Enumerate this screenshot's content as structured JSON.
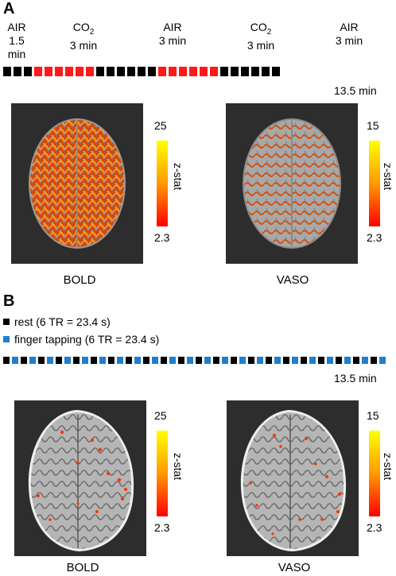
{
  "panel_a": {
    "letter": "A",
    "periods": [
      {
        "line1": "AIR",
        "line2": "1.5 min"
      },
      {
        "line1": "CO",
        "sub": "2",
        "line2": "3 min"
      },
      {
        "line1": "AIR",
        "line2": "3 min"
      },
      {
        "line1": "CO",
        "sub": "2",
        "line2": "3 min"
      },
      {
        "line1": "AIR",
        "line2": "3 min"
      }
    ],
    "block_colors": [
      "#000000",
      "#000000",
      "#000000",
      "#ff1a1a",
      "#ff1a1a",
      "#ff1a1a",
      "#ff1a1a",
      "#ff1a1a",
      "#ff1a1a",
      "#000000",
      "#000000",
      "#000000",
      "#000000",
      "#000000",
      "#000000",
      "#ff1a1a",
      "#ff1a1a",
      "#ff1a1a",
      "#ff1a1a",
      "#ff1a1a",
      "#ff1a1a",
      "#000000",
      "#000000",
      "#000000",
      "#000000",
      "#000000",
      "#000000"
    ],
    "duration": "13.5 min",
    "maps": [
      {
        "caption": "BOLD",
        "max": "25",
        "min": "2.3",
        "zlabel": "z-stat"
      },
      {
        "caption": "VASO",
        "max": "15",
        "min": "2.3",
        "zlabel": "z-stat"
      }
    ]
  },
  "panel_b": {
    "letter": "B",
    "legend": [
      {
        "color": "#000000",
        "text": "rest (6 TR = 23.4 s)"
      },
      {
        "color": "#1f7fcc",
        "text": "finger tapping (6 TR = 23.4 s)"
      }
    ],
    "duration": "13.5 min",
    "maps": [
      {
        "caption": "BOLD",
        "max": "25",
        "min": "2.3",
        "zlabel": "z-stat"
      },
      {
        "caption": "VASO",
        "max": "15",
        "min": "2.3",
        "zlabel": "z-stat"
      }
    ]
  }
}
